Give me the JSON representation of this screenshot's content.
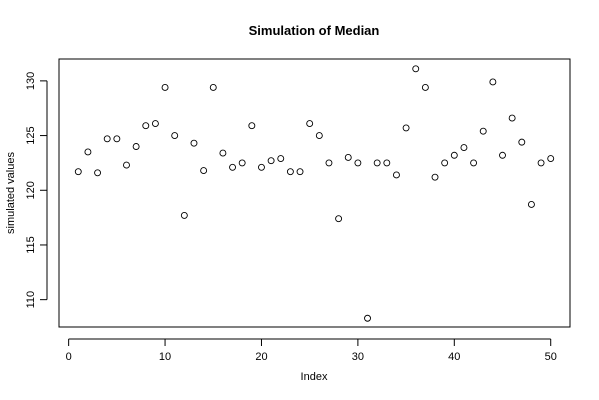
{
  "chart_data": {
    "type": "scatter",
    "title": "Simulation of Median",
    "xlabel": "Index",
    "ylabel": "simulated values",
    "xlim": [
      -1.0,
      52.0
    ],
    "ylim": [
      107.5,
      132.0
    ],
    "xticks": [
      0,
      10,
      20,
      30,
      40,
      50
    ],
    "yticks": [
      110,
      115,
      120,
      125,
      130
    ],
    "grid": false,
    "legend": "none",
    "series": [
      {
        "x": [
          1,
          2,
          3,
          4,
          5,
          6,
          7,
          8,
          9,
          10,
          11,
          12,
          13,
          14,
          15,
          16,
          17,
          18,
          19,
          20,
          21,
          22,
          23,
          24,
          25,
          26,
          27,
          28,
          29,
          30,
          31,
          32,
          33,
          34,
          35,
          36,
          37,
          38,
          39,
          40,
          41,
          42,
          43,
          44,
          45,
          46,
          47,
          48,
          49,
          50
        ],
        "y": [
          121.7,
          123.5,
          121.6,
          124.7,
          124.7,
          122.3,
          124.0,
          125.9,
          126.1,
          129.4,
          125.0,
          117.7,
          124.3,
          121.8,
          129.4,
          123.4,
          122.1,
          122.5,
          125.9,
          122.1,
          122.7,
          122.9,
          121.7,
          121.7,
          126.1,
          125.0,
          122.5,
          117.4,
          123.0,
          122.5,
          108.3,
          122.5,
          122.5,
          121.4,
          125.7,
          131.1,
          129.4,
          121.2,
          122.5,
          123.2,
          123.9,
          122.5,
          125.4,
          129.9,
          123.2,
          126.6,
          124.4,
          118.7,
          122.5,
          122.9
        ]
      }
    ]
  }
}
